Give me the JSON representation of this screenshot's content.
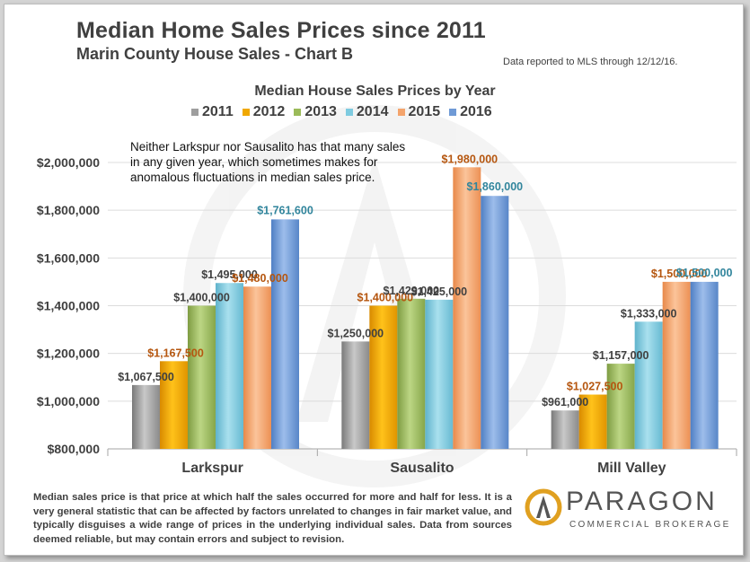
{
  "header": {
    "title": "Median Home Sales Prices since 2011",
    "subtitle": "Marin County House Sales - Chart B",
    "source_note": "Data reported to MLS through 12/12/16."
  },
  "annotation": "Neither Larkspur nor Sausalito has that many sales in any given year, which sometimes makes for anomalous fluctuations in median sales price.",
  "footer_note": "Median sales price is that price at which half the sales occurred for more and half for less. It is a very general statistic that can be affected by factors unrelated to changes in fair market value, and typically disguises a wide range of prices in the underlying individual sales. Data from sources deemed reliable, but may contain errors  and subject to revision.",
  "logo": {
    "name": "PARAGON",
    "tagline": "COMMERCIAL BROKERAGE",
    "colors": {
      "ring": "#e0a020",
      "text": "#555555"
    }
  },
  "chart_data": {
    "type": "bar",
    "title": "Median House Sales Prices by Year",
    "categories": [
      "Larkspur",
      "Sausalito",
      "Mill Valley"
    ],
    "ylim": [
      800000,
      2000000
    ],
    "yticks": [
      800000,
      1000000,
      1200000,
      1400000,
      1600000,
      1800000,
      2000000
    ],
    "ytick_labels": [
      "$800,000",
      "$1,000,000",
      "$1,200,000",
      "$1,400,000",
      "$1,600,000",
      "$1,800,000",
      "$2,000,000"
    ],
    "grid": true,
    "legend_position": "top",
    "series": [
      {
        "name": "2011",
        "color": "#9e9e9e",
        "label_color": "#404040",
        "values": [
          1067500,
          1250000,
          961000
        ],
        "labels": [
          "$1,067,500",
          "$1,250,000",
          "$961,000"
        ]
      },
      {
        "name": "2012",
        "color": "#f0a800",
        "label_color": "#b5560f",
        "values": [
          1167500,
          1400000,
          1027500
        ],
        "labels": [
          "$1,167,500",
          "$1,400,000",
          "$1,027,500"
        ]
      },
      {
        "name": "2013",
        "color": "#9bbb59",
        "label_color": "#404040",
        "values": [
          1400000,
          1429000,
          1157000
        ],
        "labels": [
          "$1,400,000",
          "$1,429,000",
          "$1,157,000"
        ]
      },
      {
        "name": "2014",
        "color": "#7ecbe0",
        "label_color": "#404040",
        "values": [
          1495000,
          1425000,
          1333000
        ],
        "labels": [
          "$1,495,000",
          "$1,425,000",
          "$1,333,000"
        ]
      },
      {
        "name": "2015",
        "color": "#f4a46c",
        "label_color": "#b5560f",
        "values": [
          1480000,
          1980000,
          1500000
        ],
        "labels": [
          "$1,480,000",
          "$1,980,000",
          "$1,500,000"
        ]
      },
      {
        "name": "2016",
        "color": "#6f9ad6",
        "label_color": "#31859c",
        "values": [
          1761600,
          1860000,
          1500000
        ],
        "labels": [
          "$1,761,600",
          "$1,860,000",
          "$1,500,000"
        ]
      }
    ]
  }
}
